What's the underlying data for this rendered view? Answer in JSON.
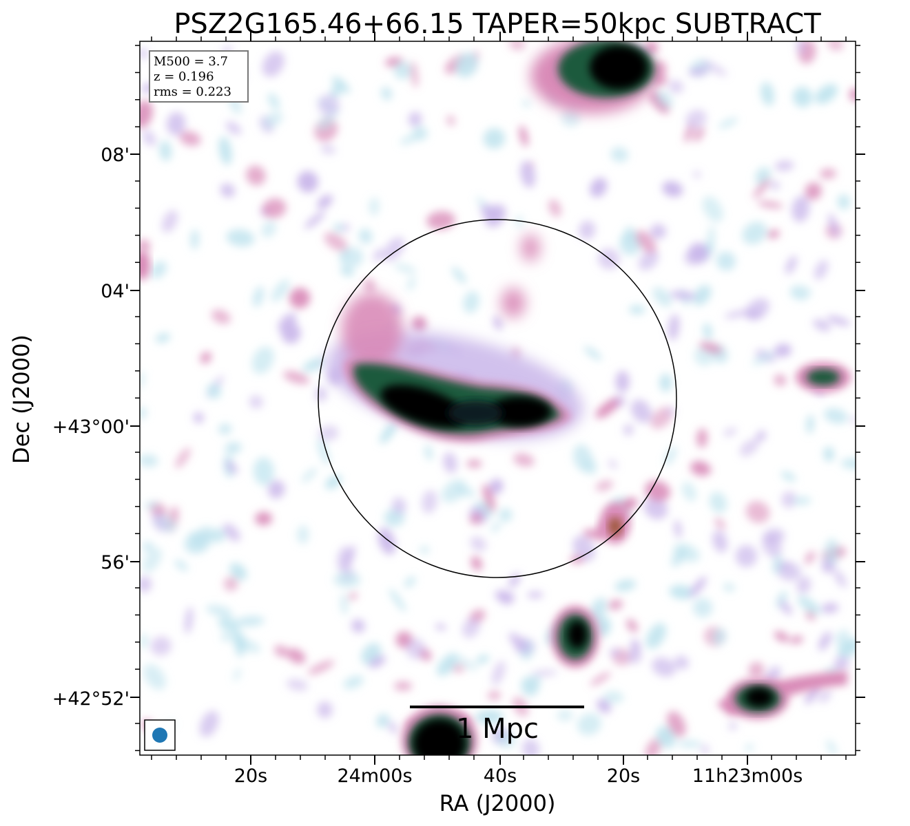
{
  "title": "PSZ2G165.46+66.15 TAPER=50kpc SUBTRACT",
  "info_box": {
    "lines": [
      "M500 = 3.7",
      "z = 0.196",
      "rms = 0.223"
    ]
  },
  "axes": {
    "xlabel": "RA (J2000)",
    "ylabel": "Dec (J2000)",
    "x_ticks": [
      "20s",
      "24m00s",
      "40s",
      "20s",
      "11h23m00s"
    ],
    "y_ticks": [
      "08'",
      "04'",
      "+43°00'",
      "56'",
      "+42°52'"
    ]
  },
  "scale_bar": {
    "label": "1 Mpc"
  },
  "colors": {
    "faint": "#bfe3ee",
    "low": "#c9b6ea",
    "mid": "#d98bb8",
    "high": "#1c5a3c",
    "peak": "#000000",
    "beam": "#1f77b4"
  }
}
